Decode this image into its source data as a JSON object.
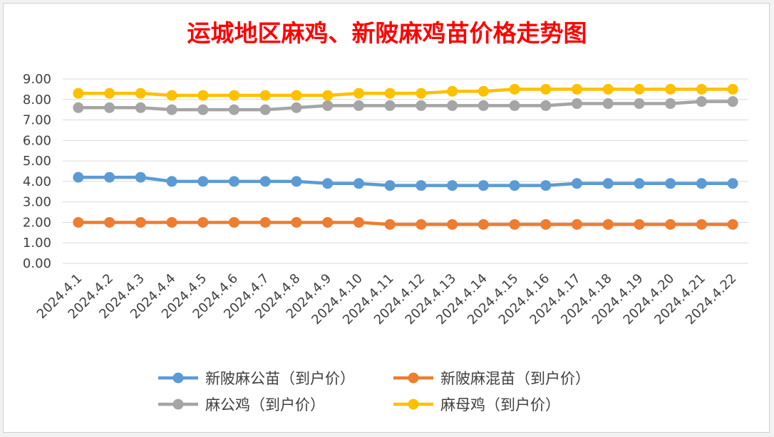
{
  "chart_data": {
    "type": "line",
    "title": "运城地区麻鸡、新陂麻鸡苗价格走势图",
    "xlabel": "",
    "ylabel": "",
    "ylim": [
      0,
      9
    ],
    "y_ticks": [
      "0.00",
      "1.00",
      "2.00",
      "3.00",
      "4.00",
      "5.00",
      "6.00",
      "7.00",
      "8.00",
      "9.00"
    ],
    "grid": true,
    "legend_position": "bottom",
    "categories": [
      "2024.4.1",
      "2024.4.2",
      "2024.4.3",
      "2024.4.4",
      "2024.4.5",
      "2024.4.6",
      "2024.4.7",
      "2024.4.8",
      "2024.4.9",
      "2024.4.10",
      "2024.4.11",
      "2024.4.12",
      "2024.4.13",
      "2024.4.14",
      "2024.4.15",
      "2024.4.16",
      "2024.4.17",
      "2024.4.18",
      "2024.4.19",
      "2024.4.20",
      "2024.4.21",
      "2024.4.22"
    ],
    "series": [
      {
        "name": "新陂麻公苗（到户价）",
        "color": "#5b9bd5",
        "values": [
          4.2,
          4.2,
          4.2,
          4.0,
          4.0,
          4.0,
          4.0,
          4.0,
          3.9,
          3.9,
          3.8,
          3.8,
          3.8,
          3.8,
          3.8,
          3.8,
          3.9,
          3.9,
          3.9,
          3.9,
          3.9,
          3.9
        ]
      },
      {
        "name": "新陂麻混苗（到户价）",
        "color": "#ed7d31",
        "values": [
          2.0,
          2.0,
          2.0,
          2.0,
          2.0,
          2.0,
          2.0,
          2.0,
          2.0,
          2.0,
          1.9,
          1.9,
          1.9,
          1.9,
          1.9,
          1.9,
          1.9,
          1.9,
          1.9,
          1.9,
          1.9,
          1.9
        ]
      },
      {
        "name": "麻公鸡（到户价）",
        "color": "#a5a5a5",
        "values": [
          7.6,
          7.6,
          7.6,
          7.5,
          7.5,
          7.5,
          7.5,
          7.6,
          7.7,
          7.7,
          7.7,
          7.7,
          7.7,
          7.7,
          7.7,
          7.7,
          7.8,
          7.8,
          7.8,
          7.8,
          7.9,
          7.9
        ]
      },
      {
        "name": "麻母鸡（到户价）",
        "color": "#ffc000",
        "values": [
          8.3,
          8.3,
          8.3,
          8.2,
          8.2,
          8.2,
          8.2,
          8.2,
          8.2,
          8.3,
          8.3,
          8.3,
          8.4,
          8.4,
          8.5,
          8.5,
          8.5,
          8.5,
          8.5,
          8.5,
          8.5,
          8.5
        ]
      }
    ]
  }
}
